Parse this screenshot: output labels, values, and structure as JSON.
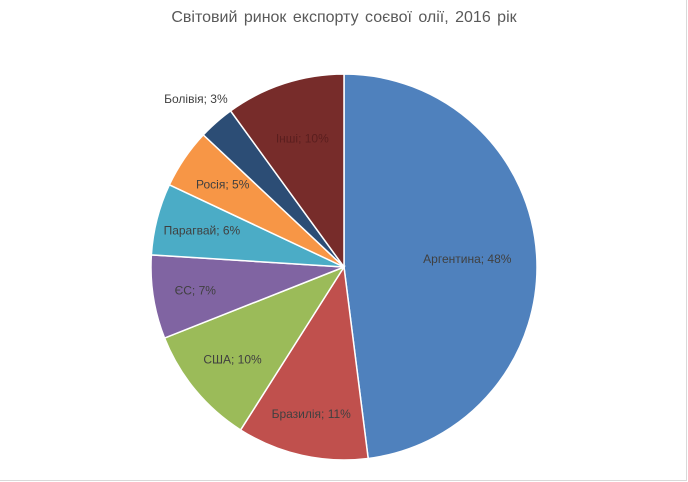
{
  "chart_data": {
    "type": "pie",
    "title": "Світовий ринок експорту соєвої олії, 2016 рік",
    "slices": [
      {
        "name": "Аргентина",
        "value": 48,
        "label": "Аргентина;  48%",
        "color": "#4f81bd"
      },
      {
        "name": "Бразилія",
        "value": 11,
        "label": "Бразилія;  11%",
        "color": "#c0504d"
      },
      {
        "name": "США",
        "value": 10,
        "label": "США;  10%",
        "color": "#9bbb59"
      },
      {
        "name": "ЄС",
        "value": 7,
        "label": "ЄС;  7%",
        "color": "#8064a2"
      },
      {
        "name": "Парагвай",
        "value": 6,
        "label": "Парагвай;  6%",
        "color": "#4bacc6"
      },
      {
        "name": "Росія",
        "value": 5,
        "label": "Росія;  5%",
        "color": "#f79646"
      },
      {
        "name": "Болівія",
        "value": 3,
        "label": "Болівія;  3%",
        "color": "#2c4d75"
      },
      {
        "name": "Інші",
        "value": 10,
        "label": "Інші;  10%",
        "color": "#772c2a"
      }
    ]
  }
}
